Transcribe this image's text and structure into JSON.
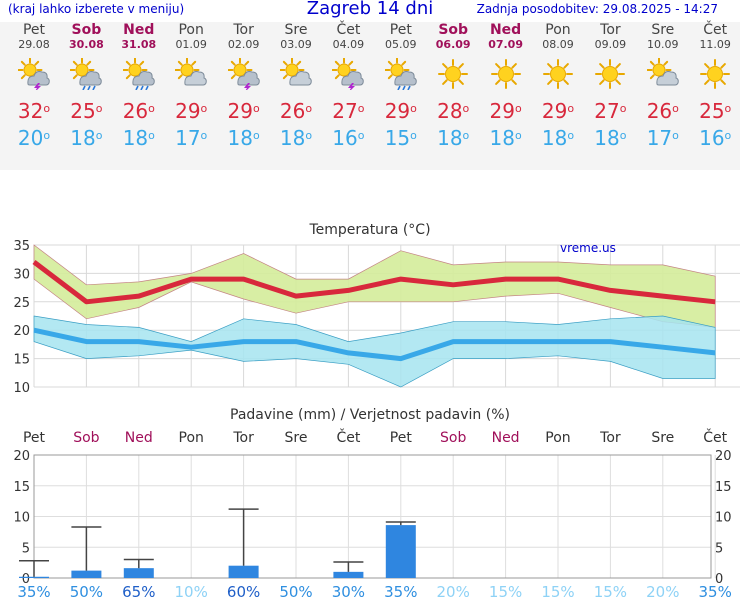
{
  "header": {
    "menu_hint": "(kraj lahko izberete v meniju)",
    "title": "Zagreb 14 dni",
    "updated": "Zadnja posodobitev: 29.08.2025 - 14:27"
  },
  "colors": {
    "accent": "#0000cc",
    "weekend": "#a0105a",
    "tmax": "#d8283c",
    "tmin": "#38a8e8",
    "band_high": "#d4ec9a",
    "band_low": "#a6e4f0",
    "precip_bar": "#2f86e0"
  },
  "days": [
    {
      "name": "Pet",
      "date": "29.08",
      "weekend": false,
      "icon": "sun-storm-icon",
      "tmax": "32",
      "tmin": "20"
    },
    {
      "name": "Sob",
      "date": "30.08",
      "weekend": true,
      "icon": "sun-cloud-rain-icon",
      "tmax": "25",
      "tmin": "18"
    },
    {
      "name": "Ned",
      "date": "31.08",
      "weekend": true,
      "icon": "sun-cloud-rain-icon",
      "tmax": "26",
      "tmin": "18"
    },
    {
      "name": "Pon",
      "date": "01.09",
      "weekend": false,
      "icon": "sun-cloud-icon",
      "tmax": "29",
      "tmin": "17"
    },
    {
      "name": "Tor",
      "date": "02.09",
      "weekend": false,
      "icon": "sun-storm-icon",
      "tmax": "29",
      "tmin": "18"
    },
    {
      "name": "Sre",
      "date": "03.09",
      "weekend": false,
      "icon": "sun-cloud-icon",
      "tmax": "26",
      "tmin": "18"
    },
    {
      "name": "Čet",
      "date": "04.09",
      "weekend": false,
      "icon": "sun-storm-icon",
      "tmax": "27",
      "tmin": "16"
    },
    {
      "name": "Pet",
      "date": "05.09",
      "weekend": false,
      "icon": "sun-cloud-rain-icon",
      "tmax": "29",
      "tmin": "15"
    },
    {
      "name": "Sob",
      "date": "06.09",
      "weekend": true,
      "icon": "sun-icon",
      "tmax": "28",
      "tmin": "18"
    },
    {
      "name": "Ned",
      "date": "07.09",
      "weekend": true,
      "icon": "sun-icon",
      "tmax": "29",
      "tmin": "18"
    },
    {
      "name": "Pon",
      "date": "08.09",
      "weekend": false,
      "icon": "sun-icon",
      "tmax": "29",
      "tmin": "18"
    },
    {
      "name": "Tor",
      "date": "09.09",
      "weekend": false,
      "icon": "sun-icon",
      "tmax": "27",
      "tmin": "18"
    },
    {
      "name": "Sre",
      "date": "10.09",
      "weekend": false,
      "icon": "sun-cloud-icon",
      "tmax": "26",
      "tmin": "17"
    },
    {
      "name": "Čet",
      "date": "11.09",
      "weekend": false,
      "icon": "sun-icon",
      "tmax": "25",
      "tmin": "16"
    }
  ],
  "chart_data": [
    {
      "type": "line",
      "title": "Temperatura (°C)",
      "watermark": "vreme.us",
      "categories": [
        "Pet",
        "Sob",
        "Ned",
        "Pon",
        "Tor",
        "Sre",
        "Čet",
        "Pet",
        "Sob",
        "Ned",
        "Pon",
        "Tor",
        "Sre",
        "Čet"
      ],
      "ylim": [
        10,
        35
      ],
      "yticks": [
        "35",
        "30",
        "25",
        "20",
        "15",
        "10"
      ],
      "grid": true,
      "series": [
        {
          "values": [
            32,
            25,
            26,
            29,
            29,
            26,
            27,
            29,
            28,
            29,
            29,
            27,
            26,
            25
          ]
        },
        {
          "values": [
            20,
            18,
            18,
            17,
            18,
            18,
            16,
            15,
            18,
            18,
            18,
            18,
            17,
            16
          ]
        }
      ],
      "bands": [
        {
          "upper": [
            35,
            28,
            28.5,
            30,
            33.5,
            29,
            29,
            34,
            31.5,
            32,
            32,
            31.5,
            31.5,
            29.5
          ],
          "lower": [
            29,
            22,
            24,
            28.5,
            25.5,
            23,
            25,
            25,
            25,
            26,
            26.5,
            24,
            21.5,
            20.5
          ]
        },
        {
          "upper": [
            22.5,
            21,
            20.5,
            18,
            22,
            21,
            18,
            19.5,
            21.5,
            21.5,
            21,
            22,
            22.5,
            20.5
          ],
          "lower": [
            18,
            15,
            15.5,
            16.5,
            14.5,
            15,
            14,
            10,
            15,
            15,
            15.5,
            14.5,
            11.5,
            11.5
          ]
        }
      ]
    },
    {
      "type": "bar",
      "title": "Padavine (mm) / Verjetnost padavin (%)",
      "categories": [
        "Pet",
        "Sob",
        "Ned",
        "Pon",
        "Tor",
        "Sre",
        "Čet",
        "Pet",
        "Sob",
        "Ned",
        "Pon",
        "Tor",
        "Sre",
        "Čet"
      ],
      "weekend": [
        false,
        true,
        true,
        false,
        false,
        false,
        false,
        false,
        true,
        true,
        false,
        false,
        false,
        false
      ],
      "ylim": [
        0,
        20
      ],
      "yticks": [
        "20",
        "15",
        "10",
        "5",
        "0"
      ],
      "values": [
        0.2,
        1.2,
        1.6,
        0,
        2.0,
        0,
        1.0,
        8.6,
        0,
        0,
        0,
        0,
        0,
        0
      ],
      "error_high": [
        2.8,
        8.3,
        3.0,
        0,
        11.2,
        0,
        2.6,
        9.1,
        0,
        0,
        0,
        0,
        0,
        0
      ],
      "probability": [
        "35%",
        "50%",
        "65%",
        "10%",
        "60%",
        "50%",
        "30%",
        "35%",
        "20%",
        "15%",
        "15%",
        "15%",
        "20%",
        "35%"
      ],
      "probability_values": [
        35,
        50,
        65,
        10,
        60,
        50,
        30,
        35,
        20,
        15,
        15,
        15,
        20,
        35
      ]
    }
  ]
}
